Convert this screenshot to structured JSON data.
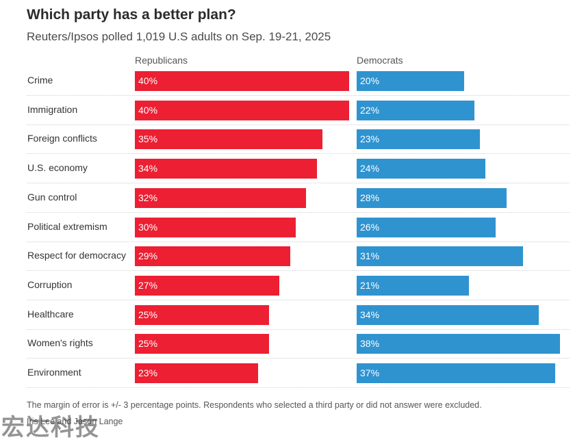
{
  "title": "Which party has a better plan?",
  "subtitle": "Reuters/Ipsos polled 1,019 U.S adults on Sep. 19-21, 2025",
  "footnote": "The margin of error is +/- 3 percentage points. Respondents who selected a third party or did not answer were excluded.",
  "credit": "Iris Lee and Jason Lange",
  "watermark": "宏达科技",
  "chart_data": {
    "type": "bar",
    "orientation": "horizontal",
    "categories": [
      "Crime",
      "Immigration",
      "Foreign conflicts",
      "U.S. economy",
      "Gun control",
      "Political extremism",
      "Respect for democracy",
      "Corruption",
      "Healthcare",
      "Women's rights",
      "Environment"
    ],
    "series": [
      {
        "name": "Republicans",
        "color": "#ec1f33",
        "values": [
          40,
          40,
          35,
          34,
          32,
          30,
          29,
          27,
          25,
          25,
          23
        ]
      },
      {
        "name": "Democrats",
        "color": "#2f93d0",
        "values": [
          20,
          22,
          23,
          24,
          28,
          26,
          31,
          21,
          34,
          38,
          37
        ]
      }
    ],
    "value_suffix": "%",
    "xlim": [
      0,
      40
    ],
    "grid": false,
    "legend": "column headers above bars"
  }
}
